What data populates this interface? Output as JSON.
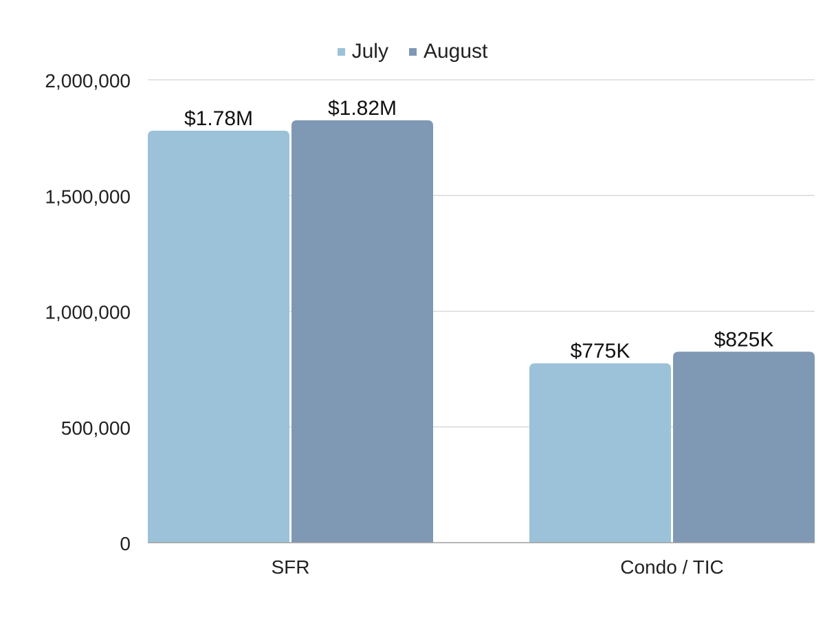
{
  "chart_data": {
    "type": "bar",
    "categories": [
      "SFR",
      "Condo / TIC"
    ],
    "series": [
      {
        "name": "July",
        "color": "#9BC2D8",
        "values": [
          1780000,
          775000
        ],
        "labels": [
          "$1.78M",
          "$775K"
        ]
      },
      {
        "name": "August",
        "color": "#7F98B4",
        "values": [
          1825000,
          825000
        ],
        "labels": [
          "$1.82M",
          "$825K"
        ]
      }
    ],
    "yticks": [
      "0",
      "500,000",
      "1,000,000",
      "1,500,000",
      "2,000,000"
    ],
    "ytick_values": [
      0,
      500000,
      1000000,
      1500000,
      2000000
    ],
    "ylim": [
      0,
      2000000
    ],
    "grid": true,
    "legend_position": "top-center"
  }
}
